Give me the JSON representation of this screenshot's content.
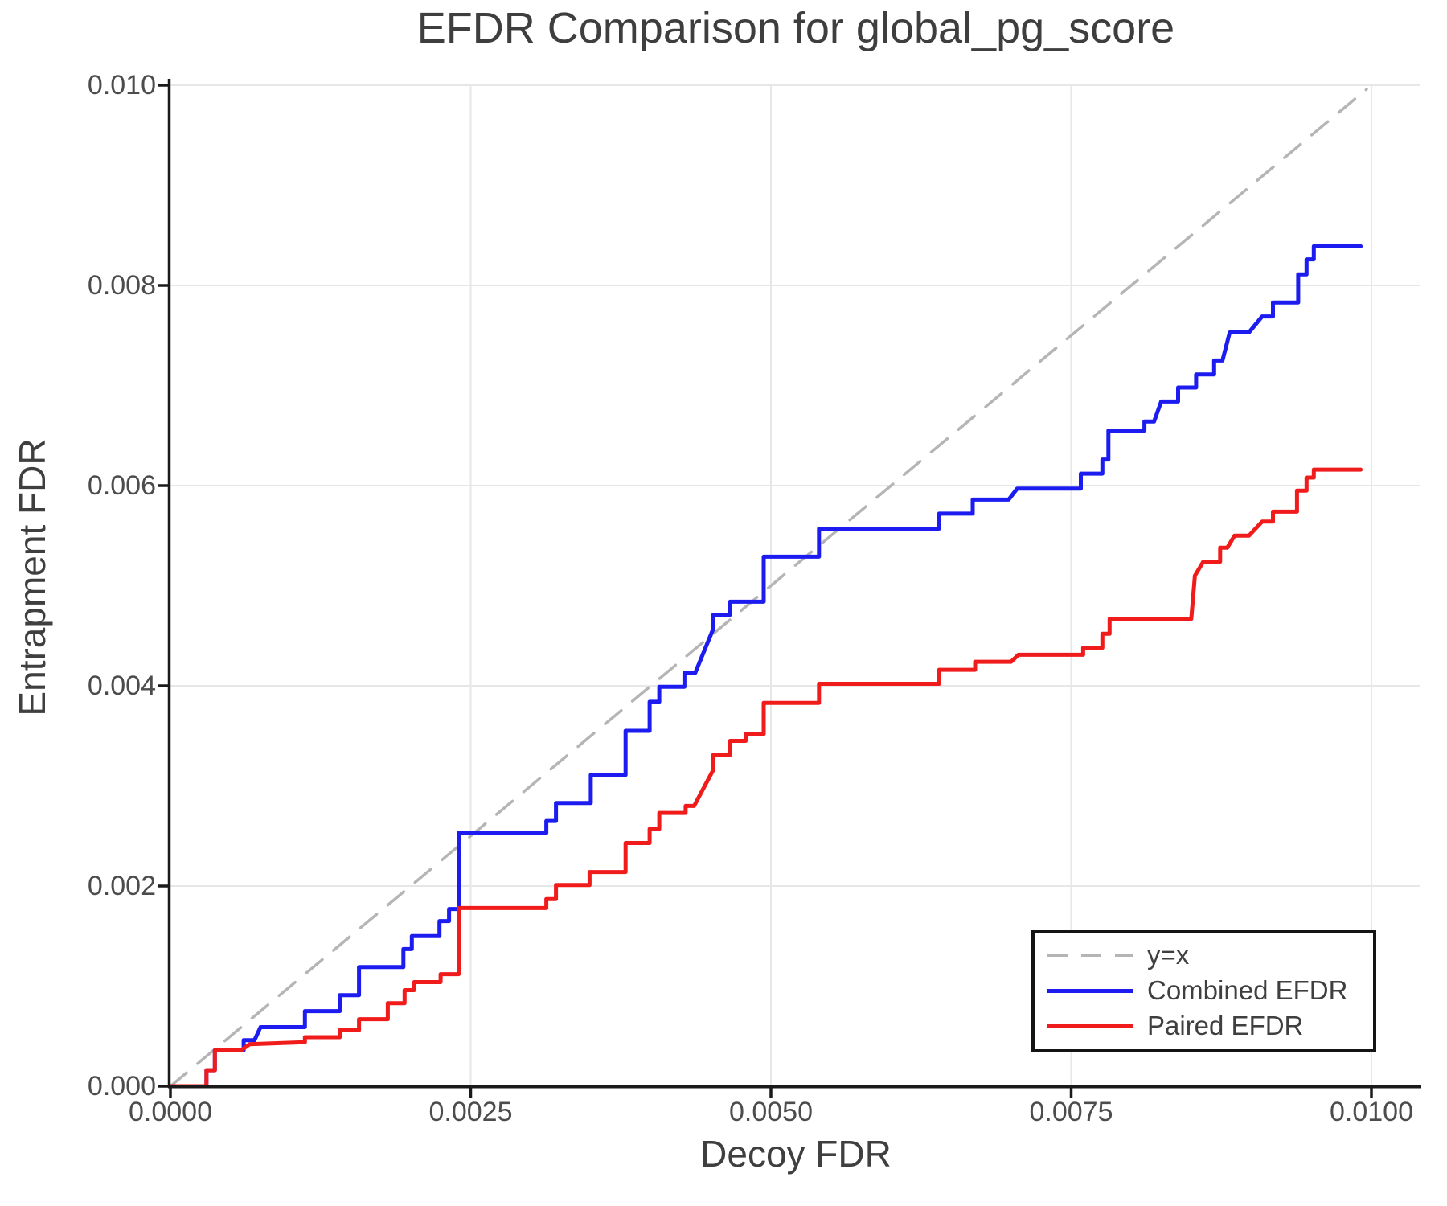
{
  "title": "EFDR Comparison for global_pg_score",
  "axes": {
    "x": {
      "label": "Decoy FDR",
      "ticks": [
        "0.0000",
        "0.0025",
        "0.0050",
        "0.0075",
        "0.0100"
      ]
    },
    "y": {
      "label": "Entrapment FDR",
      "ticks": [
        "0.000",
        "0.002",
        "0.004",
        "0.006",
        "0.008",
        "0.010"
      ]
    }
  },
  "legend": {
    "items": [
      {
        "label": "y=x",
        "color": "#b5b5b5",
        "style": "dashed"
      },
      {
        "label": "Combined EFDR",
        "color": "#1c1cf0",
        "style": "solid"
      },
      {
        "label": "Paired EFDR",
        "color": "#f01c1c",
        "style": "solid"
      }
    ]
  },
  "colors": {
    "combined": "#1c1cf0",
    "paired": "#f01c1c",
    "identity": "#b5b5b5",
    "grid": "#e7e7e7",
    "spine": "#1a1a1a",
    "text": "#3f3f3f"
  },
  "chart_data": {
    "type": "line",
    "title": "EFDR Comparison for global_pg_score",
    "xlabel": "Decoy FDR",
    "ylabel": "Entrapment FDR",
    "xlim": [
      0,
      0.01041
    ],
    "ylim": [
      0,
      0.01004
    ],
    "x_ticks": [
      0,
      0.0025,
      0.005,
      0.0075,
      0.01
    ],
    "y_ticks": [
      0,
      0.002,
      0.004,
      0.006,
      0.008,
      0.01
    ],
    "grid": true,
    "legend_position": "lower right",
    "series": [
      {
        "name": "y=x",
        "color": "#b5b5b5",
        "style": "dashed",
        "width": 3.5,
        "points": [
          [
            0,
            0
          ],
          [
            0.00996,
            0.00996
          ]
        ]
      },
      {
        "name": "Combined EFDR",
        "color": "#1c1cf0",
        "style": "solid",
        "width": 5,
        "points": [
          [
            0,
            0
          ],
          [
            0.0003,
            0
          ],
          [
            0.0003,
            0.00016
          ],
          [
            0.00037,
            0.00016
          ],
          [
            0.00037,
            0.00036
          ],
          [
            0.00061,
            0.00036
          ],
          [
            0.00061,
            0.00046
          ],
          [
            0.0007,
            0.00046
          ],
          [
            0.00075,
            0.00059
          ],
          [
            0.00112,
            0.00059
          ],
          [
            0.00112,
            0.00075
          ],
          [
            0.00141,
            0.00075
          ],
          [
            0.00141,
            0.00091
          ],
          [
            0.00157,
            0.00091
          ],
          [
            0.00157,
            0.00119
          ],
          [
            0.00194,
            0.00119
          ],
          [
            0.00194,
            0.00137
          ],
          [
            0.00201,
            0.00137
          ],
          [
            0.00201,
            0.0015
          ],
          [
            0.00224,
            0.0015
          ],
          [
            0.00224,
            0.00165
          ],
          [
            0.00232,
            0.00165
          ],
          [
            0.00232,
            0.00177
          ],
          [
            0.0024,
            0.00177
          ],
          [
            0.0024,
            0.00253
          ],
          [
            0.00313,
            0.00253
          ],
          [
            0.00313,
            0.00265
          ],
          [
            0.00321,
            0.00265
          ],
          [
            0.00321,
            0.00283
          ],
          [
            0.0035,
            0.00283
          ],
          [
            0.0035,
            0.00311
          ],
          [
            0.00379,
            0.00311
          ],
          [
            0.00379,
            0.00355
          ],
          [
            0.00399,
            0.00355
          ],
          [
            0.00399,
            0.00384
          ],
          [
            0.00407,
            0.00384
          ],
          [
            0.00407,
            0.00399
          ],
          [
            0.00428,
            0.00399
          ],
          [
            0.00428,
            0.00413
          ],
          [
            0.00437,
            0.00413
          ],
          [
            0.00452,
            0.00457
          ],
          [
            0.00452,
            0.00471
          ],
          [
            0.00466,
            0.00471
          ],
          [
            0.00466,
            0.00484
          ],
          [
            0.00494,
            0.00484
          ],
          [
            0.00494,
            0.00529
          ],
          [
            0.0054,
            0.00529
          ],
          [
            0.0054,
            0.00557
          ],
          [
            0.0064,
            0.00557
          ],
          [
            0.0064,
            0.00572
          ],
          [
            0.00668,
            0.00572
          ],
          [
            0.00668,
            0.00586
          ],
          [
            0.00698,
            0.00586
          ],
          [
            0.00705,
            0.00597
          ],
          [
            0.00758,
            0.00597
          ],
          [
            0.00758,
            0.00612
          ],
          [
            0.00776,
            0.00612
          ],
          [
            0.00776,
            0.00626
          ],
          [
            0.00781,
            0.00626
          ],
          [
            0.00781,
            0.00655
          ],
          [
            0.00811,
            0.00655
          ],
          [
            0.00811,
            0.00664
          ],
          [
            0.00819,
            0.00664
          ],
          [
            0.00825,
            0.00684
          ],
          [
            0.00839,
            0.00684
          ],
          [
            0.00839,
            0.00698
          ],
          [
            0.00854,
            0.00698
          ],
          [
            0.00854,
            0.00711
          ],
          [
            0.00869,
            0.00711
          ],
          [
            0.00869,
            0.00725
          ],
          [
            0.00876,
            0.00725
          ],
          [
            0.00882,
            0.00753
          ],
          [
            0.00898,
            0.00753
          ],
          [
            0.00909,
            0.00769
          ],
          [
            0.00918,
            0.00769
          ],
          [
            0.00918,
            0.00783
          ],
          [
            0.00939,
            0.00783
          ],
          [
            0.00939,
            0.00811
          ],
          [
            0.00946,
            0.00811
          ],
          [
            0.00946,
            0.00826
          ],
          [
            0.00952,
            0.00826
          ],
          [
            0.00952,
            0.00839
          ],
          [
            0.00991,
            0.00839
          ]
        ]
      },
      {
        "name": "Paired EFDR",
        "color": "#f01c1c",
        "style": "solid",
        "width": 5,
        "points": [
          [
            0,
            0
          ],
          [
            0.0003,
            0
          ],
          [
            0.0003,
            0.00016
          ],
          [
            0.00037,
            0.00016
          ],
          [
            0.00037,
            0.00036
          ],
          [
            0.00059,
            0.00036
          ],
          [
            0.00066,
            0.00042
          ],
          [
            0.00112,
            0.00044
          ],
          [
            0.00112,
            0.00049
          ],
          [
            0.00141,
            0.00049
          ],
          [
            0.00141,
            0.00056
          ],
          [
            0.00157,
            0.00056
          ],
          [
            0.00157,
            0.00067
          ],
          [
            0.00181,
            0.00067
          ],
          [
            0.00181,
            0.00083
          ],
          [
            0.00195,
            0.00083
          ],
          [
            0.00195,
            0.00096
          ],
          [
            0.00203,
            0.00096
          ],
          [
            0.00203,
            0.00104
          ],
          [
            0.00225,
            0.00104
          ],
          [
            0.00225,
            0.00112
          ],
          [
            0.0024,
            0.00112
          ],
          [
            0.0024,
            0.00178
          ],
          [
            0.00313,
            0.00178
          ],
          [
            0.00313,
            0.00187
          ],
          [
            0.00321,
            0.00187
          ],
          [
            0.00321,
            0.00201
          ],
          [
            0.00349,
            0.00201
          ],
          [
            0.00349,
            0.00214
          ],
          [
            0.00379,
            0.00214
          ],
          [
            0.00379,
            0.00243
          ],
          [
            0.00399,
            0.00243
          ],
          [
            0.00399,
            0.00257
          ],
          [
            0.00407,
            0.00257
          ],
          [
            0.00407,
            0.00273
          ],
          [
            0.00429,
            0.00273
          ],
          [
            0.00429,
            0.0028
          ],
          [
            0.00436,
            0.0028
          ],
          [
            0.00452,
            0.00316
          ],
          [
            0.00452,
            0.00331
          ],
          [
            0.00466,
            0.00331
          ],
          [
            0.00466,
            0.00345
          ],
          [
            0.00479,
            0.00345
          ],
          [
            0.00479,
            0.00352
          ],
          [
            0.00494,
            0.00352
          ],
          [
            0.00494,
            0.00383
          ],
          [
            0.0054,
            0.00383
          ],
          [
            0.0054,
            0.00402
          ],
          [
            0.0064,
            0.00402
          ],
          [
            0.0064,
            0.00416
          ],
          [
            0.0067,
            0.00416
          ],
          [
            0.0067,
            0.00424
          ],
          [
            0.007,
            0.00424
          ],
          [
            0.00706,
            0.00431
          ],
          [
            0.0076,
            0.00431
          ],
          [
            0.0076,
            0.00438
          ],
          [
            0.00776,
            0.00438
          ],
          [
            0.00776,
            0.00452
          ],
          [
            0.00782,
            0.00452
          ],
          [
            0.00782,
            0.00467
          ],
          [
            0.0085,
            0.00467
          ],
          [
            0.00853,
            0.0051
          ],
          [
            0.0086,
            0.00524
          ],
          [
            0.00874,
            0.00524
          ],
          [
            0.00874,
            0.00538
          ],
          [
            0.0088,
            0.00538
          ],
          [
            0.00886,
            0.0055
          ],
          [
            0.00898,
            0.0055
          ],
          [
            0.00909,
            0.00564
          ],
          [
            0.00918,
            0.00564
          ],
          [
            0.00918,
            0.00574
          ],
          [
            0.00938,
            0.00574
          ],
          [
            0.00938,
            0.00595
          ],
          [
            0.00946,
            0.00595
          ],
          [
            0.00946,
            0.00608
          ],
          [
            0.00952,
            0.00608
          ],
          [
            0.00952,
            0.00616
          ],
          [
            0.00991,
            0.00616
          ]
        ]
      }
    ]
  }
}
